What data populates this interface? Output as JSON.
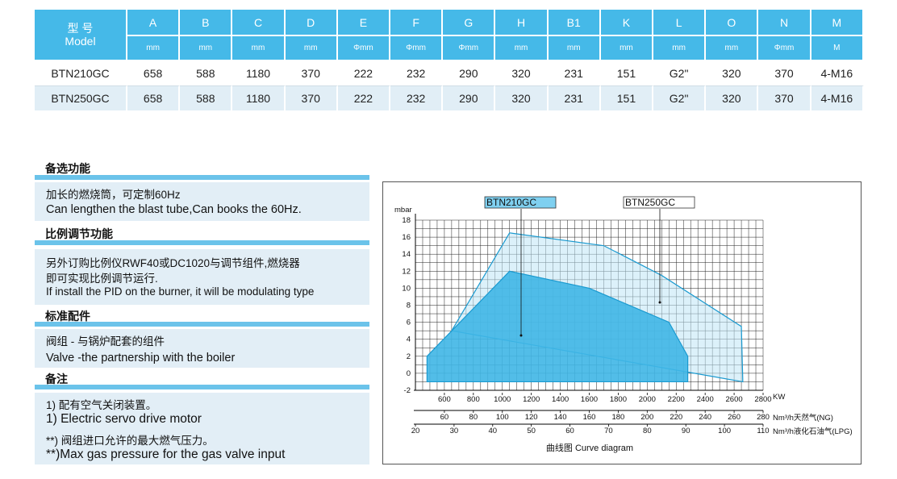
{
  "spec_table": {
    "model_header": {
      "cn": "型 号",
      "en": "Model"
    },
    "columns": [
      {
        "key": "A",
        "unit": "mm"
      },
      {
        "key": "B",
        "unit": "mm"
      },
      {
        "key": "C",
        "unit": "mm"
      },
      {
        "key": "D",
        "unit": "mm"
      },
      {
        "key": "E",
        "unit": "Φmm"
      },
      {
        "key": "F",
        "unit": "Φmm"
      },
      {
        "key": "G",
        "unit": "Φmm"
      },
      {
        "key": "H",
        "unit": "mm"
      },
      {
        "key": "B1",
        "unit": "mm"
      },
      {
        "key": "K",
        "unit": "mm"
      },
      {
        "key": "L",
        "unit": "mm"
      },
      {
        "key": "O",
        "unit": "mm"
      },
      {
        "key": "N",
        "unit": "Φmm"
      },
      {
        "key": "M",
        "unit": "M"
      }
    ],
    "rows": [
      {
        "model": "BTN210GC",
        "values": [
          "658",
          "588",
          "1180",
          "370",
          "222",
          "232",
          "290",
          "320",
          "231",
          "151",
          "G2\"",
          "320",
          "370",
          "4-M16"
        ]
      },
      {
        "model": "BTN250GC",
        "values": [
          "658",
          "588",
          "1180",
          "370",
          "222",
          "232",
          "290",
          "320",
          "231",
          "151",
          "G2\"",
          "320",
          "370",
          "4-M16"
        ]
      }
    ]
  },
  "sections": {
    "optional": {
      "title": "备选功能",
      "lines": [
        "加长的燃烧筒，可定制60Hz",
        "Can lengthen the blast tube,Can books the 60Hz."
      ]
    },
    "proportional": {
      "title": "比例调节功能",
      "lines": [
        "另外订购比例仪RWF40或DC1020与调节组件,燃烧器",
        "即可实现比例调节运行.",
        "If install the PID on the burner, it will be modulating type"
      ]
    },
    "standard": {
      "title": "标准配件",
      "lines": [
        "阀组 - 与锅炉配套的组件",
        "Valve -the partnership with the boiler"
      ]
    },
    "remarks": {
      "title": "备注",
      "lines": [
        "1) 配有空气关闭装置。",
        "1) Electric servo drive motor",
        "**) 阀组进口允许的最大燃气压力。",
        "**)Max gas pressure for the gas valve input"
      ]
    }
  },
  "chart_data": {
    "type": "area",
    "title": "",
    "caption": "曲线图 Curve diagram",
    "ylabel": "mbar",
    "ylim": [
      -2,
      18
    ],
    "y_ticks": [
      -2,
      0,
      2,
      4,
      6,
      8,
      10,
      12,
      14,
      16,
      18
    ],
    "x_axes": [
      {
        "unit": "KW",
        "range": [
          400,
          2800
        ],
        "ticks": [
          600,
          800,
          1000,
          1200,
          1400,
          1600,
          1800,
          2000,
          2200,
          2400,
          2600,
          2800
        ]
      },
      {
        "unit": "Nm³/h天然气(NG)",
        "range": [
          40,
          280
        ],
        "ticks": [
          60,
          80,
          100,
          120,
          140,
          160,
          180,
          200,
          220,
          240,
          260,
          280
        ]
      },
      {
        "unit": "Nm³/h液化石油气(LPG)",
        "range": [
          20,
          110
        ],
        "ticks": [
          20,
          30,
          40,
          50,
          60,
          70,
          80,
          90,
          100,
          110
        ]
      }
    ],
    "x_axis_rows": [
      {
        "ticks": [
          "600",
          "800",
          "1000",
          "1200",
          "1400",
          "1600",
          "1800",
          "2000",
          "2200",
          "2400",
          "2600",
          "2800"
        ],
        "unit": "KW"
      },
      {
        "ticks": [
          "60",
          "80",
          "100",
          "120",
          "140",
          "160",
          "180",
          "200",
          "220",
          "240",
          "260",
          "280"
        ],
        "unit": "Nm³/h天然气(NG)"
      },
      {
        "ticks": [
          "20",
          "30",
          "40",
          "50",
          "60",
          "70",
          "80",
          "90",
          "100",
          "110"
        ],
        "unit": "Nm³/h液化石油气(LPG)"
      }
    ],
    "series": [
      {
        "name": "BTN210GC",
        "color": "#3fb6e5",
        "x_kw": [
          480,
          480,
          1050,
          1600,
          2150,
          2280,
          2280
        ],
        "y": [
          -1,
          2,
          12,
          10,
          6,
          2,
          -1
        ]
      },
      {
        "name": "BTN250GC",
        "color": "#bfe6f6",
        "x_kw": [
          650,
          1050,
          1700,
          2100,
          2650,
          2660
        ],
        "y": [
          5,
          16.5,
          15,
          11.5,
          5.5,
          -1
        ]
      }
    ],
    "grid": true
  }
}
